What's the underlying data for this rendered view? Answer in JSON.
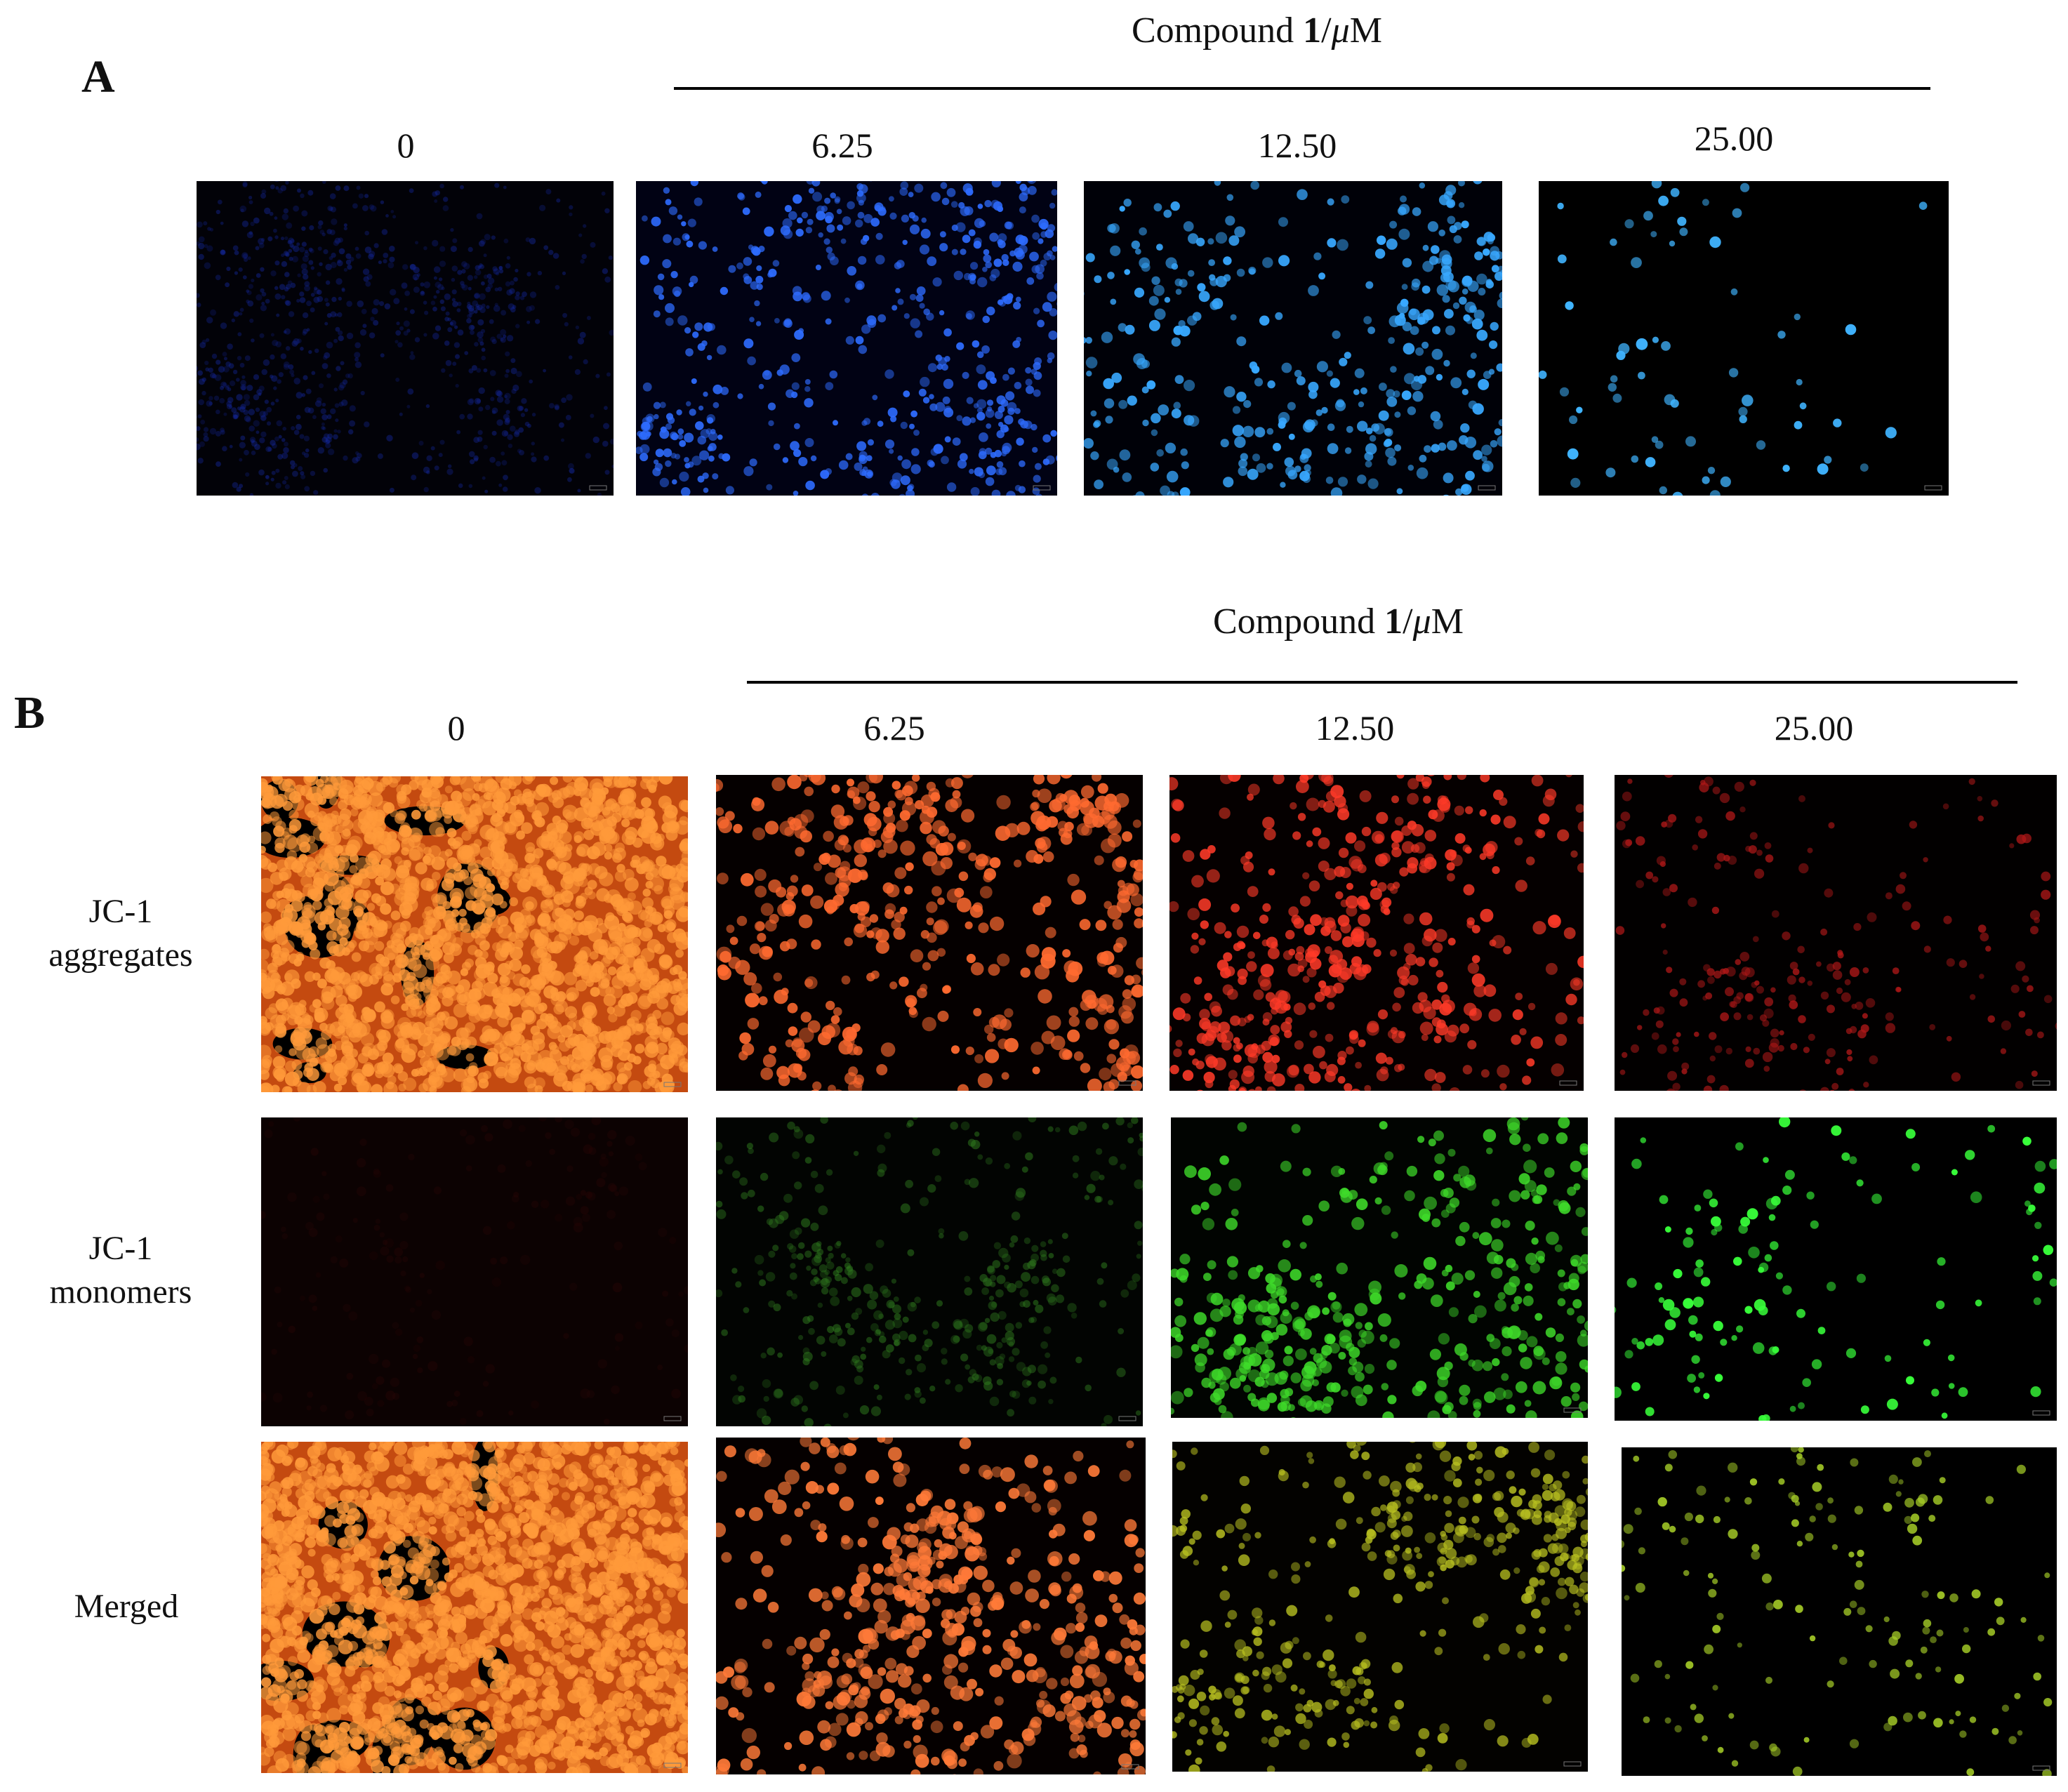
{
  "panel_a": {
    "letter": "A",
    "header": {
      "prefix": "Compound ",
      "bold": "1",
      "slash": "/",
      "unit_mu": "μ",
      "unit_rest": "M"
    },
    "concentrations": [
      "0",
      "6.25",
      "12.50",
      "25.00"
    ],
    "images": [
      {
        "stain": "Hoechst",
        "bg": "#020208",
        "cell": "#1428a0",
        "count": 900,
        "r": 4,
        "seed": 11,
        "opacity": 0.45
      },
      {
        "stain": "Hoechst",
        "bg": "#010214",
        "cell": "#2e6cff",
        "count": 620,
        "r": 6,
        "seed": 22,
        "opacity": 0.95
      },
      {
        "stain": "Hoechst",
        "bg": "#000108",
        "cell": "#38a8ff",
        "count": 420,
        "r": 7,
        "seed": 33,
        "opacity": 1
      },
      {
        "stain": "Hoechst",
        "bg": "#000000",
        "cell": "#40b4ff",
        "count": 70,
        "r": 7,
        "seed": 44,
        "opacity": 1
      }
    ]
  },
  "panel_b": {
    "letter": "B",
    "header": {
      "prefix": "Compound ",
      "bold": "1",
      "slash": "/",
      "unit_mu": "μ",
      "unit_rest": "M"
    },
    "concentrations": [
      "0",
      "6.25",
      "12.50",
      "25.00"
    ],
    "row_labels": [
      [
        "JC-1",
        "aggregates"
      ],
      [
        "JC-1",
        "monomers"
      ],
      [
        "Merged"
      ]
    ],
    "rows": [
      [
        {
          "bg": "#c44a10",
          "cell": "#ff9a3a",
          "count": 1800,
          "r": 9,
          "seed": 101,
          "opacity": 0.9,
          "dense": true
        },
        {
          "bg": "#050000",
          "cell": "#ff6a30",
          "count": 520,
          "r": 9,
          "seed": 102,
          "opacity": 0.95
        },
        {
          "bg": "#050000",
          "cell": "#ff3a28",
          "count": 520,
          "r": 8,
          "seed": 103,
          "opacity": 0.9
        },
        {
          "bg": "#020000",
          "cell": "#b01818",
          "count": 260,
          "r": 6,
          "seed": 104,
          "opacity": 0.8
        }
      ],
      [
        {
          "bg": "#0c0202",
          "cell": "#2a0606",
          "count": 200,
          "r": 6,
          "seed": 201,
          "opacity": 0.4
        },
        {
          "bg": "#020402",
          "cell": "#2f7a1e",
          "count": 420,
          "r": 6,
          "seed": 202,
          "opacity": 0.55
        },
        {
          "bg": "#010401",
          "cell": "#3fdc2a",
          "count": 460,
          "r": 8,
          "seed": 203,
          "opacity": 0.9
        },
        {
          "bg": "#000000",
          "cell": "#38ff3a",
          "count": 140,
          "r": 7,
          "seed": 204,
          "opacity": 1
        }
      ],
      [
        {
          "bg": "#c44a10",
          "cell": "#ff9a3a",
          "count": 1800,
          "r": 9,
          "seed": 301,
          "opacity": 0.9,
          "dense": true
        },
        {
          "bg": "#050000",
          "cell": "#ff7a38",
          "count": 520,
          "r": 9,
          "seed": 302,
          "opacity": 0.95
        },
        {
          "bg": "#030200",
          "cell": "#b8c020",
          "count": 440,
          "r": 7,
          "seed": 303,
          "opacity": 0.85
        },
        {
          "bg": "#000000",
          "cell": "#a8d028",
          "count": 160,
          "r": 6,
          "seed": 304,
          "opacity": 0.9
        }
      ]
    ]
  }
}
